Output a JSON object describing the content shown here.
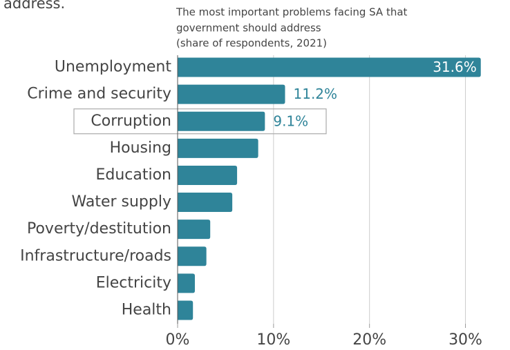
{
  "page_text": "address.",
  "chart_data": {
    "type": "barh",
    "title": [
      "The most important problems facing SA that",
      "government should address"
    ],
    "subtitle": "(share of respondents, 2021)",
    "categories": [
      "Unemployment",
      "Crime and security",
      "Corruption",
      "Housing",
      "Education",
      "Water supply",
      "Poverty/destitution",
      "Infrastructure/roads",
      "Electricity",
      "Health"
    ],
    "values": [
      31.6,
      11.2,
      9.1,
      8.4,
      6.2,
      5.7,
      3.4,
      3.0,
      1.8,
      1.6
    ],
    "value_labels": [
      "31.6%",
      "11.2%",
      "9.1%",
      null,
      null,
      null,
      null,
      null,
      null,
      null
    ],
    "color": "#2f8499",
    "highlight": 2,
    "xlim": [
      0,
      34.5
    ],
    "xticks": [
      {
        "value": 0,
        "label": "0%"
      },
      {
        "value": 10,
        "label": "10%"
      },
      {
        "value": 20,
        "label": "20%"
      },
      {
        "value": 30,
        "label": "30%"
      }
    ],
    "grid": true
  }
}
